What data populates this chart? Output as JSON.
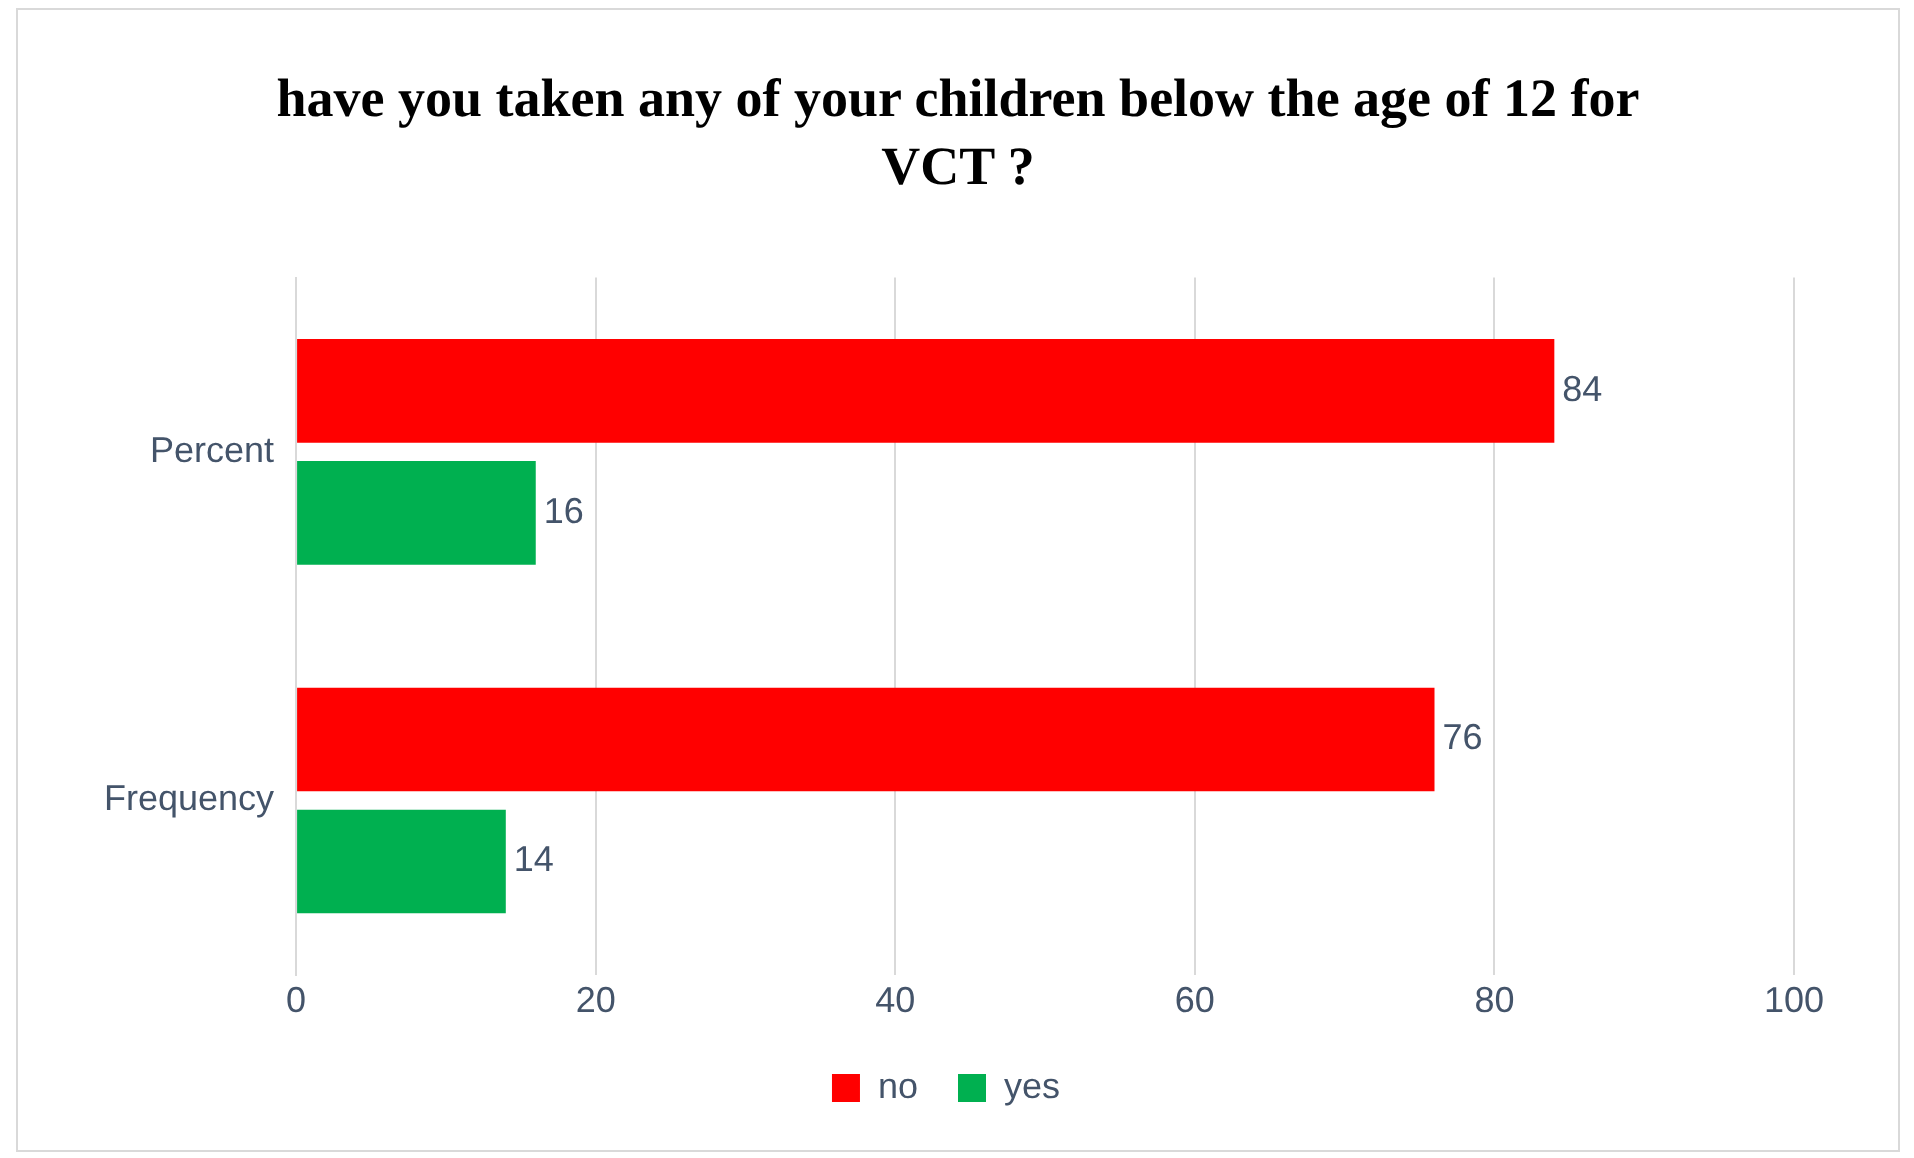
{
  "chart_data": {
    "type": "bar",
    "orientation": "horizontal",
    "title": "have you taken any of your children below the age of 12 for VCT ?",
    "categories": [
      "Percent",
      "Frequency"
    ],
    "series": [
      {
        "name": "no",
        "color": "#ff0000",
        "values": [
          84,
          76
        ]
      },
      {
        "name": "yes",
        "color": "#00b050",
        "values": [
          16,
          14
        ]
      }
    ],
    "xlim": [
      0,
      100
    ],
    "xticks": [
      0,
      20,
      40,
      60,
      80,
      100
    ],
    "grid": "x",
    "legend": "bottom",
    "data_labels": true
  }
}
